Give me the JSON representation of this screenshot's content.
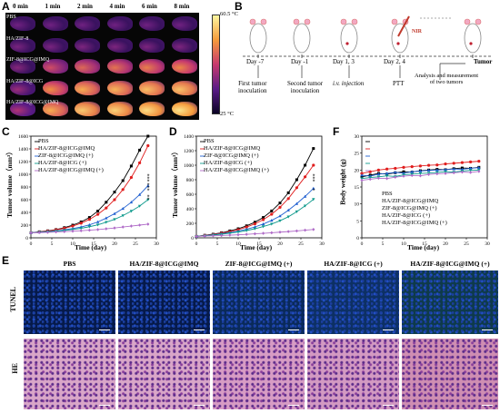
{
  "panels": {
    "A": "A",
    "B": "B",
    "C": "C",
    "D": "D",
    "E": "E",
    "F": "F"
  },
  "panelA": {
    "times": [
      "0 min",
      "1 min",
      "2 min",
      "4 min",
      "6 min",
      "8 min"
    ],
    "rows": [
      "PBS",
      "HA/ZIF-8",
      "ZIF-8@ICG@IMQ",
      "HA/ZIF-8@ICG",
      "HA/ZIF-8@ICG@IMQ"
    ],
    "intensity": [
      [
        0.3,
        0.3,
        0.3,
        0.3,
        0.3,
        0.3
      ],
      [
        0.32,
        0.32,
        0.33,
        0.33,
        0.33,
        0.33
      ],
      [
        0.35,
        0.55,
        0.62,
        0.65,
        0.68,
        0.7
      ],
      [
        0.4,
        0.72,
        0.8,
        0.82,
        0.85,
        0.86
      ],
      [
        0.45,
        0.8,
        0.88,
        0.9,
        0.93,
        0.95
      ]
    ],
    "colorbar_max": "60.5 °C",
    "colorbar_min": "25 °C"
  },
  "panelB": {
    "days": [
      "Day -7",
      "Day -1",
      "Day 1, 3",
      "Day 2, 4"
    ],
    "tumor_label": "Tumor",
    "nir_label": "NIR",
    "captions": [
      "First tumor\ninoculation",
      "Second tumor\ninoculation",
      "i.v. injection",
      "PTT",
      "Analysis and measurement\nof two tumors"
    ]
  },
  "panelC": {
    "ylabel": "Tumor volume（mm³）",
    "xlabel": "Time (day)",
    "legend": [
      "PBS",
      "HA/ZIF-8@ICG@IMQ",
      "ZIF-8@ICG@IMQ (+)",
      "HA/ZIF-8@ICG (+)",
      "HA/ZIF-8@ICG@IMQ (+)"
    ],
    "yticks": [
      "0",
      "200",
      "400",
      "600",
      "800",
      "1000",
      "1200",
      "1400",
      "1600"
    ],
    "xticks": [
      "0",
      "5",
      "10",
      "15",
      "20",
      "25",
      "30"
    ],
    "sig": [
      "***",
      "***",
      "**"
    ]
  },
  "panelD": {
    "ylabel": "Tumor volume（mm³）",
    "xlabel": "Time (day)",
    "legend": [
      "PBS",
      "HA/ZIF-8@ICG@IMQ",
      "ZIF-8@ICG@IMQ (+)",
      "HA/ZIF-8@ICG (+)",
      "HA/ZIF-8@ICG@IMQ (+)"
    ],
    "yticks": [
      "0",
      "200",
      "400",
      "600",
      "800",
      "1000",
      "1200",
      "1400"
    ],
    "xticks": [
      "0",
      "5",
      "10",
      "15",
      "20",
      "25",
      "30"
    ],
    "sig": [
      "***",
      "*"
    ]
  },
  "panelF": {
    "ylabel": "Body weight (g)",
    "xlabel": "Time (day)",
    "legend": [
      "PBS",
      "HA/ZIF-8@ICG@IMQ",
      "ZIF-8@ICG@IMQ (+)",
      "HA/ZIF-8@ICG (+)",
      "HA/ZIF-8@ICG@IMQ (+)"
    ],
    "yticks": [
      "0",
      "5",
      "10",
      "15",
      "20",
      "25",
      "30"
    ],
    "xticks": [
      "0",
      "5",
      "10",
      "15",
      "20",
      "25",
      "30"
    ]
  },
  "panelE": {
    "columns": [
      "PBS",
      "HA/ZIF-8@ICG@IMQ",
      "ZIF-8@ICG@IMQ (+)",
      "HA/ZIF-8@ICG (+)",
      "HA/ZIF-8@ICG@IMQ (+)"
    ],
    "rows": [
      "TUNEL",
      "HE"
    ]
  },
  "colors": {
    "PBS": "#000000",
    "HA_ICG_IMQ": "#e01e1e",
    "ZIF_ICG_IMQ_plus": "#1f5fd0",
    "HA_ICG_plus": "#0f9a8c",
    "HA_ICG_IMQ_plus": "#b06cc8"
  },
  "chart_data": [
    {
      "type": "line",
      "panel": "C",
      "xlabel": "Time (day)",
      "ylabel": "Tumor volume（mm³）",
      "xlim": [
        0,
        30
      ],
      "ylim": [
        0,
        1600
      ],
      "x": [
        0,
        2,
        4,
        6,
        8,
        10,
        12,
        14,
        16,
        18,
        20,
        22,
        24,
        26,
        28
      ],
      "series": [
        {
          "name": "PBS",
          "values": [
            80,
            95,
            110,
            130,
            160,
            200,
            250,
            320,
            420,
            560,
            720,
            900,
            1130,
            1380,
            1600
          ]
        },
        {
          "name": "HA/ZIF-8@ICG@IMQ",
          "values": [
            80,
            92,
            105,
            125,
            150,
            185,
            230,
            290,
            370,
            470,
            600,
            760,
            950,
            1180,
            1450
          ]
        },
        {
          "name": "ZIF-8@ICG@IMQ (+)",
          "values": [
            80,
            88,
            98,
            110,
            125,
            145,
            170,
            205,
            250,
            310,
            380,
            460,
            560,
            680,
            820
          ]
        },
        {
          "name": "HA/ZIF-8@ICG (+)",
          "values": [
            80,
            86,
            94,
            104,
            116,
            132,
            150,
            175,
            205,
            245,
            290,
            350,
            420,
            500,
            600
          ]
        },
        {
          "name": "HA/ZIF-8@ICG@IMQ (+)",
          "values": [
            80,
            82,
            86,
            92,
            98,
            105,
            112,
            120,
            130,
            142,
            155,
            170,
            185,
            200,
            215
          ]
        }
      ]
    },
    {
      "type": "line",
      "panel": "D",
      "xlabel": "Time (day)",
      "ylabel": "Tumor volume（mm³）",
      "xlim": [
        0,
        30
      ],
      "ylim": [
        0,
        1400
      ],
      "x": [
        0,
        2,
        4,
        6,
        8,
        10,
        12,
        14,
        16,
        18,
        20,
        22,
        24,
        26,
        28
      ],
      "series": [
        {
          "name": "PBS",
          "values": [
            20,
            35,
            50,
            70,
            95,
            125,
            165,
            215,
            280,
            370,
            480,
            620,
            800,
            1000,
            1230
          ]
        },
        {
          "name": "HA/ZIF-8@ICG@IMQ",
          "values": [
            20,
            33,
            46,
            64,
            85,
            112,
            148,
            192,
            250,
            325,
            420,
            540,
            690,
            840,
            1000
          ]
        },
        {
          "name": "ZIF-8@ICG@IMQ (+)",
          "values": [
            20,
            30,
            42,
            56,
            72,
            92,
            118,
            150,
            190,
            240,
            300,
            380,
            470,
            570,
            680
          ]
        },
        {
          "name": "HA/ZIF-8@ICG (+)",
          "values": [
            20,
            28,
            38,
            50,
            64,
            80,
            100,
            125,
            155,
            190,
            235,
            290,
            360,
            440,
            530
          ]
        },
        {
          "name": "HA/ZIF-8@ICG@IMQ (+)",
          "values": [
            20,
            24,
            28,
            32,
            37,
            42,
            48,
            55,
            62,
            70,
            78,
            86,
            95,
            105,
            115
          ]
        }
      ]
    },
    {
      "type": "line",
      "panel": "F",
      "xlabel": "Time (day)",
      "ylabel": "Body weight (g)",
      "xlim": [
        0,
        30
      ],
      "ylim": [
        0,
        30
      ],
      "x": [
        0,
        2,
        4,
        6,
        8,
        10,
        12,
        14,
        16,
        18,
        20,
        22,
        24,
        26,
        28
      ],
      "series": [
        {
          "name": "PBS",
          "values": [
            18,
            18.5,
            19,
            18.8,
            19.2,
            19.5,
            19.4,
            19.8,
            20,
            20.2,
            20.1,
            20.4,
            20.6,
            20.5,
            20.8
          ]
        },
        {
          "name": "HA/ZIF-8@ICG@IMQ",
          "values": [
            19,
            19.5,
            20,
            20.3,
            20.5,
            20.8,
            21,
            21.2,
            21.4,
            21.5,
            21.8,
            22,
            22.2,
            22.4,
            22.6
          ]
        },
        {
          "name": "ZIF-8@ICG@IMQ (+)",
          "values": [
            18.5,
            18.2,
            18.8,
            19,
            19.3,
            19.1,
            19.5,
            19.7,
            19.9,
            20,
            20.1,
            20.3,
            20.2,
            20.5,
            20.7
          ]
        },
        {
          "name": "HA/ZIF-8@ICG (+)",
          "values": [
            17.5,
            17.8,
            18,
            18.3,
            18.1,
            18.6,
            18.8,
            19,
            19.1,
            19.3,
            19.5,
            19.4,
            19.7,
            19.9,
            20
          ]
        },
        {
          "name": "HA/ZIF-8@ICG@IMQ (+)",
          "values": [
            17,
            17.3,
            17.6,
            17.5,
            17.9,
            18.2,
            18.4,
            18.3,
            18.7,
            18.9,
            19,
            19.2,
            19.4,
            19.3,
            19.6
          ]
        }
      ]
    }
  ]
}
